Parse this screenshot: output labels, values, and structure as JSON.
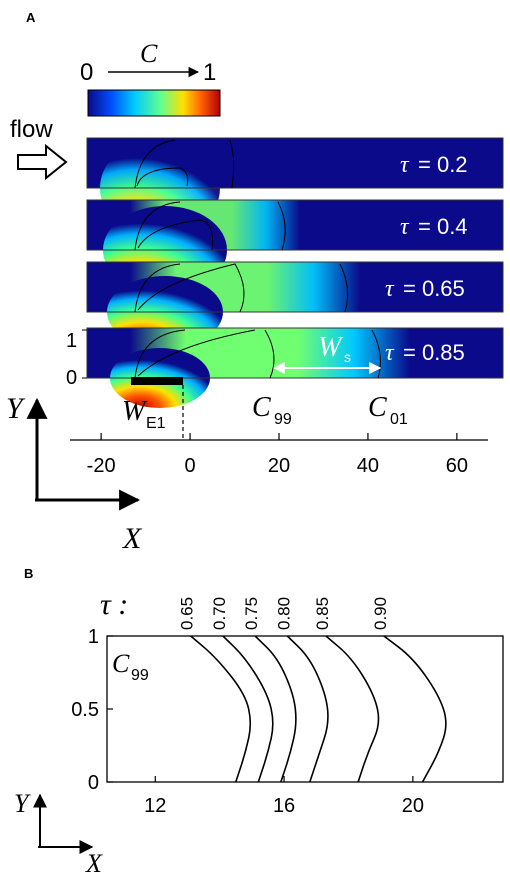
{
  "panel_a": {
    "tag": "A",
    "colorbar": {
      "variable": "C",
      "min_label": "0",
      "max_label": "1",
      "colors": [
        "#0a0a8a",
        "#0050ff",
        "#00c8ff",
        "#60ff90",
        "#ffe000",
        "#ff6000",
        "#b00000"
      ]
    },
    "flow_label": "flow",
    "snapshots": [
      {
        "tau_symbol": "τ",
        "tau_value": "= 0.2",
        "tau": 0.2
      },
      {
        "tau_symbol": "τ",
        "tau_value": "= 0.4",
        "tau": 0.4
      },
      {
        "tau_symbol": "τ",
        "tau_value": "= 0.65",
        "tau": 0.65
      },
      {
        "tau_symbol": "τ",
        "tau_value": "= 0.85",
        "tau": 0.85
      }
    ],
    "y_ticks": [
      "1",
      "0"
    ],
    "ws_label": {
      "main": "W",
      "sub": "s"
    },
    "we_label": {
      "main": "W",
      "sub": "E1"
    },
    "c99_label": {
      "main": "C",
      "sub": "99"
    },
    "c01_label": {
      "main": "C",
      "sub": "01"
    },
    "axis_ticks": [
      "-20",
      "0",
      "20",
      "40",
      "60"
    ],
    "axis_tick_values": [
      -20,
      0,
      20,
      40,
      60
    ],
    "axis_range": [
      -27,
      67
    ],
    "axes_arrows": {
      "y": "Y",
      "x": "X"
    }
  },
  "panel_b": {
    "tag": "B",
    "tau_label": "τ :",
    "curve_label": {
      "main": "C",
      "sub": "99"
    },
    "axes_arrows": {
      "y": "Y",
      "x": "X"
    }
  },
  "chart_data": {
    "type": "line",
    "x": [
      12,
      14,
      16,
      18,
      20
    ],
    "xlim": [
      10.5,
      22.8
    ],
    "ylim": [
      0,
      1
    ],
    "x_ticks": [
      "12",
      "16",
      "20"
    ],
    "x_tick_values": [
      12,
      16,
      20
    ],
    "y_ticks": [
      "0",
      "0.5",
      "1"
    ],
    "y_tick_values": [
      0,
      0.5,
      1
    ],
    "series": [
      {
        "name": "0.65",
        "points": [
          [
            13.1,
            1.0
          ],
          [
            13.9,
            0.85
          ],
          [
            14.8,
            0.6
          ],
          [
            15.0,
            0.4
          ],
          [
            14.8,
            0.2
          ],
          [
            14.5,
            0.0
          ]
        ]
      },
      {
        "name": "0.70",
        "points": [
          [
            14.1,
            1.0
          ],
          [
            14.8,
            0.85
          ],
          [
            15.5,
            0.6
          ],
          [
            15.7,
            0.4
          ],
          [
            15.5,
            0.2
          ],
          [
            15.2,
            0.0
          ]
        ]
      },
      {
        "name": "0.75",
        "points": [
          [
            15.1,
            1.0
          ],
          [
            15.8,
            0.85
          ],
          [
            16.3,
            0.6
          ],
          [
            16.4,
            0.4
          ],
          [
            16.2,
            0.2
          ],
          [
            15.9,
            0.0
          ]
        ]
      },
      {
        "name": "0.80",
        "points": [
          [
            16.1,
            1.0
          ],
          [
            16.8,
            0.85
          ],
          [
            17.3,
            0.6
          ],
          [
            17.4,
            0.4
          ],
          [
            17.1,
            0.2
          ],
          [
            16.8,
            0.0
          ]
        ]
      },
      {
        "name": "0.85",
        "points": [
          [
            17.3,
            1.0
          ],
          [
            18.1,
            0.85
          ],
          [
            18.8,
            0.6
          ],
          [
            19.0,
            0.4
          ],
          [
            18.6,
            0.2
          ],
          [
            18.3,
            0.0
          ]
        ]
      },
      {
        "name": "0.90",
        "points": [
          [
            19.1,
            1.0
          ],
          [
            20.0,
            0.85
          ],
          [
            20.8,
            0.6
          ],
          [
            21.1,
            0.4
          ],
          [
            20.8,
            0.2
          ],
          [
            20.3,
            0.0
          ]
        ]
      }
    ]
  }
}
